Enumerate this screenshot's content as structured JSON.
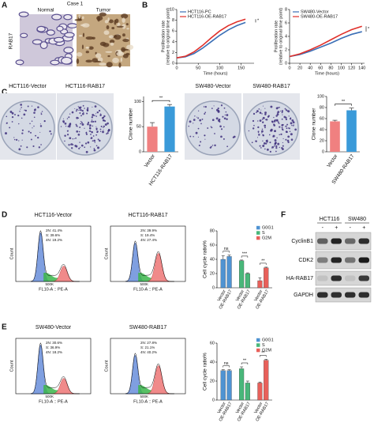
{
  "panel_labels": [
    "A",
    "B",
    "C",
    "D",
    "E",
    "F"
  ],
  "ihc": {
    "case": "Case 1",
    "row": "RAB17",
    "columns": [
      "Normal",
      "Tumor"
    ]
  },
  "plates": [
    {
      "titles": [
        "HCT116-Vector",
        "HCT116-RAB17"
      ]
    },
    {
      "titles": [
        "SW480-Vector",
        "SW480-RAB17"
      ]
    }
  ],
  "flow": [
    {
      "titles": [
        "HCT116-Vector",
        "HCT116-RAB17"
      ],
      "stats": [
        [
          "2N: 41.4%",
          "S: 39.6%",
          "4N: 19.2%"
        ],
        [
          "2N: 39.9%",
          "S: 19.4%",
          "4N: 27.4%"
        ]
      ],
      "xlabel": "FL10-A :: PE-A",
      "ylabel": "Count",
      "xtick": "500K"
    },
    {
      "titles": [
        "SW480-Vector",
        "SW480-RAB17"
      ],
      "stats": [
        [
          "2N: 30.6%",
          "S: 36.9%",
          "4N: 18.2%"
        ],
        [
          "2N: 27.8%",
          "S: 21.1%",
          "4N: 40.2%"
        ]
      ],
      "xlabel": "FL10-A :: PE-A",
      "ylabel": "Count",
      "xtick": "500K"
    }
  ],
  "blot": {
    "cell_lines": [
      "HCT116",
      "SW480"
    ],
    "lanes": [
      "-",
      "+",
      "-",
      "+"
    ],
    "rows": [
      "CyclinB1",
      "CDK2",
      "HA-RAB17",
      "GAPDH"
    ]
  },
  "chart_data": [
    {
      "type": "line",
      "x": [
        0,
        20,
        40,
        60,
        80,
        100,
        120,
        140,
        160
      ],
      "series": [
        {
          "name": "HCT116-PC",
          "color": "#3b6fb6",
          "values": [
            1,
            1.2,
            1.8,
            2.8,
            4.0,
            5.2,
            6.2,
            7.0,
            7.6
          ]
        },
        {
          "name": "HCT116-OE-RAB17",
          "color": "#e0302a",
          "values": [
            1,
            1.3,
            2.1,
            3.3,
            4.7,
            6.0,
            7.0,
            7.7,
            8.2
          ]
        }
      ],
      "xlabel": "Time (hours)",
      "ylabel": [
        "Proliferation rate",
        "(relative to original time point)"
      ],
      "xlim": [
        0,
        180
      ],
      "xticks": [
        0,
        50,
        100,
        150
      ],
      "ylim": [
        0,
        10
      ],
      "yticks": [
        0,
        2,
        4,
        6,
        8,
        10
      ],
      "annotation": "*"
    },
    {
      "type": "line",
      "x": [
        0,
        20,
        40,
        60,
        80,
        100,
        120,
        140
      ],
      "series": [
        {
          "name": "SW480-Vector",
          "color": "#3b6fb6",
          "values": [
            1,
            1.3,
            1.8,
            2.4,
            3.0,
            3.7,
            4.3,
            4.7
          ]
        },
        {
          "name": "SW480-OE-RAB17",
          "color": "#e0302a",
          "values": [
            1,
            1.4,
            2.0,
            2.7,
            3.5,
            4.3,
            5.0,
            5.5
          ]
        }
      ],
      "xlabel": "Time (hours)",
      "ylabel": [
        "Proliferation rate",
        "(relative to original time point)"
      ],
      "xlim": [
        0,
        145
      ],
      "xticks": [
        0,
        20,
        40,
        60,
        80,
        100,
        120,
        140
      ],
      "ylim": [
        0,
        8
      ],
      "yticks": [
        0,
        2,
        4,
        6,
        8
      ],
      "annotation": "*"
    },
    {
      "type": "bar",
      "categories": [
        "Vector",
        "HCT116-RAB17"
      ],
      "values": [
        50,
        90
      ],
      "errors": [
        8,
        4
      ],
      "colors": [
        "#f08080",
        "#3a9ad9"
      ],
      "ylabel": "Clone number",
      "ylim": [
        0,
        110
      ],
      "yticks": [
        0,
        50,
        100
      ],
      "annotation": "**"
    },
    {
      "type": "bar",
      "categories": [
        "Vector",
        "SW480-RAB17"
      ],
      "values": [
        55,
        75
      ],
      "errors": [
        2,
        4
      ],
      "colors": [
        "#f08080",
        "#3a9ad9"
      ],
      "ylabel": "Clone number",
      "ylim": [
        0,
        100
      ],
      "yticks": [
        0,
        20,
        40,
        60,
        80,
        100
      ],
      "annotation": "**"
    },
    {
      "type": "grouped_bar",
      "categories": [
        "Vector",
        "OE-RAB17"
      ],
      "series": [
        {
          "name": "G0G1",
          "color": "#4f93d2",
          "values": [
            40,
            44
          ],
          "errors": [
            5,
            2
          ]
        },
        {
          "name": "S",
          "color": "#49b77a",
          "values": [
            38,
            20
          ],
          "errors": [
            1,
            1
          ]
        },
        {
          "name": "G2M",
          "color": "#e8605a",
          "values": [
            10,
            28
          ],
          "errors": [
            4,
            1
          ]
        }
      ],
      "ylabel": "Cell cycle ratio%",
      "ylim": [
        0,
        80
      ],
      "yticks": [
        0,
        20,
        40,
        60,
        80
      ],
      "annotations": [
        "ns",
        "***",
        "**"
      ]
    },
    {
      "type": "grouped_bar",
      "categories": [
        "Vector",
        "OE-RAB17"
      ],
      "series": [
        {
          "name": "G0G1",
          "color": "#4f93d2",
          "values": [
            31,
            31
          ],
          "errors": [
            1,
            1
          ]
        },
        {
          "name": "S",
          "color": "#49b77a",
          "values": [
            33,
            18
          ],
          "errors": [
            2,
            2
          ]
        },
        {
          "name": "G2M",
          "color": "#e8605a",
          "values": [
            18,
            42
          ],
          "errors": [
            1,
            1
          ]
        }
      ],
      "ylabel": "Cell cycle ratio%",
      "ylim": [
        0,
        60
      ],
      "yticks": [
        0,
        20,
        40,
        60
      ],
      "annotations": [
        "ns",
        "**",
        "**"
      ]
    }
  ]
}
